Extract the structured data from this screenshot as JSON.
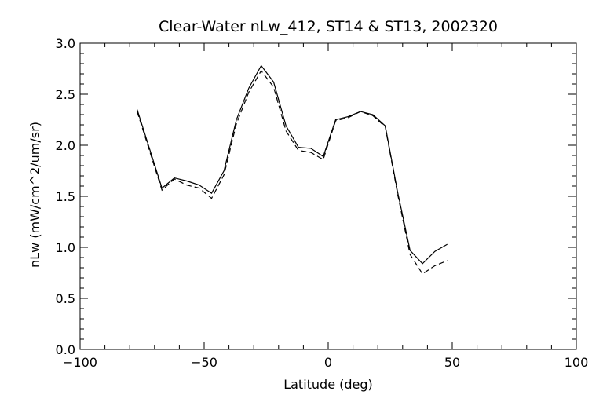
{
  "chart_data": {
    "type": "line",
    "title": "Clear-Water nLw_412, ST14 & ST13, 2002320",
    "xlabel": "Latitude (deg)",
    "ylabel": "nLw (mW/cm^2/um/sr)",
    "xlim": [
      -100,
      100
    ],
    "ylim": [
      0.0,
      3.0
    ],
    "x_ticks": [
      -100,
      -50,
      0,
      50,
      100
    ],
    "x_tick_labels": [
      "−100",
      "−50",
      "0",
      "50",
      "100"
    ],
    "y_ticks": [
      0.0,
      0.5,
      1.0,
      1.5,
      2.0,
      2.5,
      3.0
    ],
    "y_tick_labels": [
      "0.0",
      "0.5",
      "1.0",
      "1.5",
      "2.0",
      "2.5",
      "3.0"
    ],
    "grid": false,
    "series": [
      {
        "style": "solid",
        "x": [
          -77,
          -67,
          -62,
          -57,
          -52,
          -47,
          -42,
          -37,
          -32,
          -27,
          -22,
          -17,
          -12,
          -7,
          -2,
          3,
          8,
          13,
          18,
          23,
          28,
          33,
          38,
          43,
          48
        ],
        "y": [
          2.35,
          1.58,
          1.68,
          1.65,
          1.61,
          1.53,
          1.75,
          2.25,
          2.56,
          2.78,
          2.62,
          2.19,
          1.98,
          1.97,
          1.89,
          2.25,
          2.28,
          2.33,
          2.3,
          2.19,
          1.54,
          0.97,
          0.84,
          0.96,
          1.03
        ]
      },
      {
        "style": "dashed",
        "x": [
          -77,
          -67,
          -62,
          -57,
          -52,
          -47,
          -42,
          -37,
          -32,
          -27,
          -22,
          -17,
          -12,
          -7,
          -2,
          3,
          8,
          13,
          18,
          23,
          28,
          33,
          38,
          43,
          48
        ],
        "y": [
          2.33,
          1.56,
          1.67,
          1.61,
          1.58,
          1.48,
          1.71,
          2.21,
          2.52,
          2.73,
          2.57,
          2.14,
          1.95,
          1.93,
          1.86,
          2.24,
          2.27,
          2.33,
          2.29,
          2.18,
          1.52,
          0.93,
          0.74,
          0.82,
          0.87
        ]
      }
    ]
  }
}
